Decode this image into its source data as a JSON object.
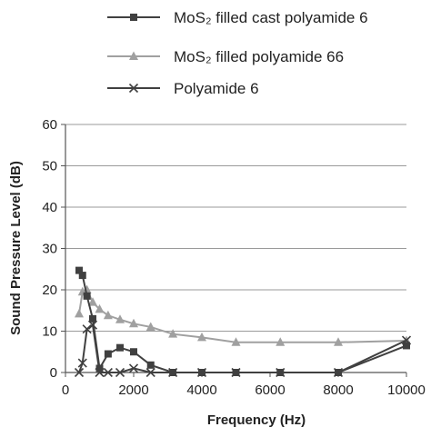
{
  "chart_data": {
    "type": "line",
    "xlabel": "Frequency (Hz)",
    "ylabel": "Sound Pressure Level (dB)",
    "xlim": [
      0,
      10000
    ],
    "ylim": [
      0,
      60
    ],
    "xticks": [
      0,
      2000,
      4000,
      6000,
      8000,
      10000
    ],
    "yticks": [
      0,
      10,
      20,
      30,
      40,
      50,
      60
    ],
    "grid": "horizontal",
    "legend_position": "top",
    "series": [
      {
        "name": "MoS₂ filled cast polyamide 6",
        "marker": "square",
        "color": "#404040",
        "x": [
          400,
          500,
          630,
          800,
          1000,
          1250,
          1600,
          2000,
          2500,
          3150,
          4000,
          5000,
          6300,
          8000,
          10000
        ],
        "y": [
          24.7,
          23.5,
          18.5,
          13,
          1,
          4.5,
          6,
          5,
          1.8,
          0,
          0,
          0,
          0,
          0,
          6.5
        ]
      },
      {
        "name": "MoS₂ filled polyamide 66",
        "marker": "triangle",
        "color": "#a0a0a0",
        "x": [
          400,
          500,
          630,
          800,
          1000,
          1250,
          1600,
          2000,
          2500,
          3150,
          4000,
          5000,
          6300,
          8000,
          10000
        ],
        "y": [
          14.2,
          19.5,
          20,
          17,
          15.3,
          13.8,
          12.8,
          11.8,
          11,
          9.3,
          8.5,
          7.3,
          7.3,
          7.3,
          7.7
        ]
      },
      {
        "name": "Polyamide 6",
        "marker": "x",
        "color": "#404040",
        "x": [
          400,
          500,
          630,
          800,
          1000,
          1250,
          1600,
          2000,
          2500,
          3150,
          4000,
          5000,
          6300,
          8000,
          10000
        ],
        "y": [
          0,
          2.3,
          10.5,
          11.5,
          0,
          0,
          0,
          1,
          0,
          0,
          0,
          0,
          0,
          0,
          7.8
        ]
      }
    ]
  }
}
